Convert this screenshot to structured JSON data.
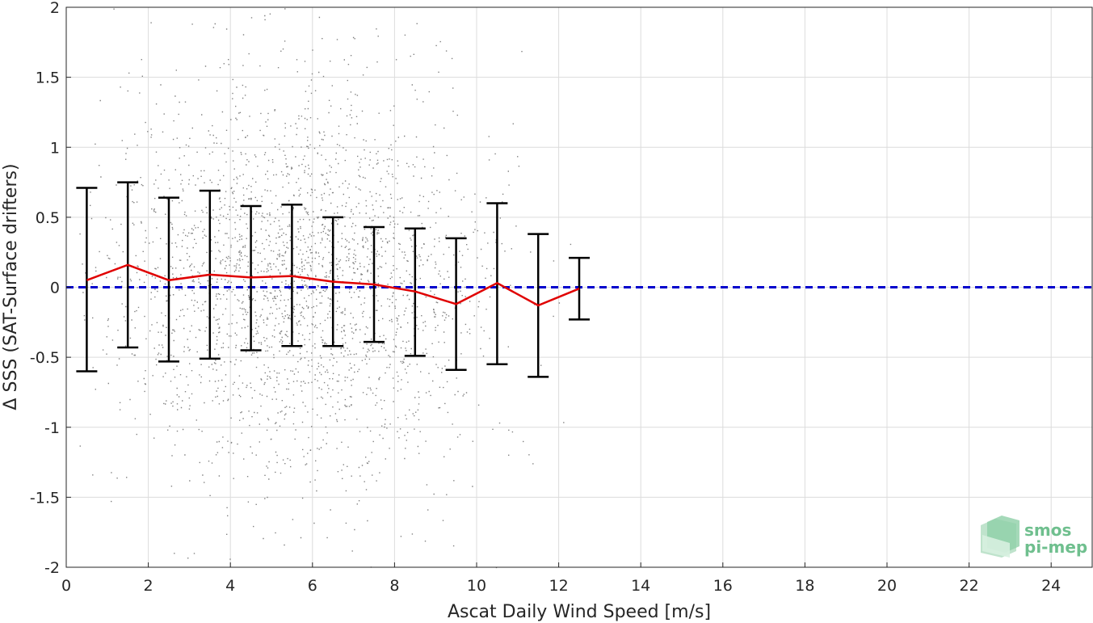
{
  "chart_data": {
    "type": "scatter",
    "xlabel": "Ascat Daily Wind Speed [m/s]",
    "ylabel": "Δ SSS (SAT-Surface drifters)",
    "xlim": [
      0,
      25
    ],
    "ylim": [
      -2,
      2
    ],
    "xticks": [
      0,
      2,
      4,
      6,
      8,
      10,
      12,
      14,
      16,
      18,
      20,
      22,
      24
    ],
    "yticks": [
      -2,
      -1.5,
      -1,
      -0.5,
      0,
      0.5,
      1,
      1.5,
      2
    ],
    "grid": true,
    "scatter_extent": {
      "x_range": [
        0.3,
        12.5
      ],
      "color": "#808080"
    },
    "zero_line": {
      "y": 0,
      "color": "#0000cc",
      "style": "dashed"
    },
    "mean_line": {
      "color": "#e00000",
      "x": [
        0.5,
        1.5,
        2.5,
        3.5,
        4.5,
        5.5,
        6.5,
        7.5,
        8.5,
        9.5,
        10.5,
        11.5,
        12.5
      ],
      "y": [
        0.05,
        0.16,
        0.05,
        0.09,
        0.07,
        0.08,
        0.04,
        0.02,
        -0.03,
        -0.12,
        0.03,
        -0.13,
        -0.01
      ]
    },
    "error_bars": {
      "color": "#000000",
      "x": [
        0.5,
        1.5,
        2.5,
        3.5,
        4.5,
        5.5,
        6.5,
        7.5,
        8.5,
        9.5,
        10.5,
        11.5,
        12.5
      ],
      "upper": [
        0.71,
        0.75,
        0.64,
        0.69,
        0.58,
        0.59,
        0.5,
        0.43,
        0.42,
        0.35,
        0.6,
        0.38,
        0.21
      ],
      "lower": [
        -0.6,
        -0.43,
        -0.53,
        -0.51,
        -0.45,
        -0.42,
        -0.42,
        -0.39,
        -0.49,
        -0.59,
        -0.55,
        -0.64,
        -0.23
      ]
    }
  },
  "logo": {
    "line1": "smos",
    "line2": "pi-mep"
  }
}
